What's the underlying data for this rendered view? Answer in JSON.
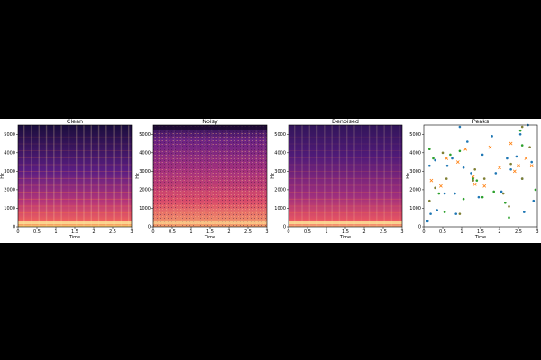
{
  "chart_data": [
    {
      "type": "heatmap",
      "title": "Clean",
      "xlabel": "Time",
      "ylabel": "Hz",
      "xlim": [
        0,
        3
      ],
      "ylim": [
        0,
        5500
      ],
      "xticks": [
        "0",
        "0.5",
        "1",
        "1.5",
        "2",
        "2.5",
        "3"
      ],
      "yticks": [
        "0",
        "1000",
        "2000",
        "3000",
        "4000",
        "5000"
      ],
      "colormap": "magma",
      "content": "harmonic"
    },
    {
      "type": "heatmap",
      "title": "Noisy",
      "xlabel": "Time",
      "ylabel": "Hz",
      "xlim": [
        0,
        3
      ],
      "ylim": [
        0,
        5500
      ],
      "xticks": [
        "0",
        "0.5",
        "1",
        "1.5",
        "2",
        "2.5",
        "3"
      ],
      "yticks": [
        "0",
        "1000",
        "2000",
        "3000",
        "4000",
        "5000"
      ],
      "colormap": "magma",
      "content": "noisy"
    },
    {
      "type": "heatmap",
      "title": "Denoised",
      "xlabel": "Time",
      "ylabel": "Hz",
      "xlim": [
        0,
        3
      ],
      "ylim": [
        0,
        5500
      ],
      "xticks": [
        "0",
        "0.5",
        "1",
        "1.5",
        "2",
        "2.5",
        "3"
      ],
      "yticks": [
        "0",
        "1000",
        "2000",
        "3000",
        "4000",
        "5000"
      ],
      "colormap": "magma",
      "content": "denoised"
    },
    {
      "type": "scatter",
      "title": "Peaks",
      "xlabel": "Time",
      "ylabel": "Hz",
      "xlim": [
        0,
        3
      ],
      "ylim": [
        0,
        5500
      ],
      "xticks": [
        "0",
        "0.5",
        "1",
        "1.5",
        "2",
        "2.5",
        "3"
      ],
      "yticks": [
        "0",
        "1000",
        "2000",
        "3000",
        "4000",
        "5000"
      ],
      "series": [
        {
          "marker": "dot",
          "color": "#1f77b4",
          "points": [
            [
              0.15,
              3300
            ],
            [
              0.18,
              700
            ],
            [
              0.3,
              3600
            ],
            [
              0.35,
              900
            ],
            [
              0.55,
              1800
            ],
            [
              0.62,
              3300
            ],
            [
              0.75,
              3700
            ],
            [
              0.82,
              1800
            ],
            [
              0.85,
              700
            ],
            [
              0.95,
              5400
            ],
            [
              1.05,
              3200
            ],
            [
              1.15,
              4600
            ],
            [
              1.25,
              2900
            ],
            [
              1.45,
              1600
            ],
            [
              1.55,
              3900
            ],
            [
              1.8,
              4900
            ],
            [
              1.9,
              2900
            ],
            [
              2.05,
              1900
            ],
            [
              2.2,
              3700
            ],
            [
              2.3,
              3100
            ],
            [
              2.45,
              3800
            ],
            [
              2.55,
              5000
            ],
            [
              2.6,
              2600
            ],
            [
              2.65,
              800
            ],
            [
              2.75,
              5500
            ],
            [
              2.85,
              3500
            ],
            [
              2.9,
              1400
            ],
            [
              0.1,
              300
            ]
          ]
        },
        {
          "marker": "x",
          "color": "#ff7f0e",
          "points": [
            [
              0.2,
              2500
            ],
            [
              0.45,
              2200
            ],
            [
              0.6,
              3700
            ],
            [
              0.9,
              3500
            ],
            [
              1.1,
              4200
            ],
            [
              1.3,
              2700
            ],
            [
              1.35,
              2300
            ],
            [
              1.6,
              2200
            ],
            [
              1.75,
              4300
            ],
            [
              2.0,
              3200
            ],
            [
              2.3,
              4500
            ],
            [
              2.4,
              3000
            ],
            [
              2.5,
              3300
            ],
            [
              2.7,
              3700
            ],
            [
              2.85,
              3300
            ]
          ]
        },
        {
          "marker": "dot",
          "color": "#2ca02c",
          "points": [
            [
              0.15,
              4200
            ],
            [
              0.25,
              3700
            ],
            [
              0.4,
              1800
            ],
            [
              0.55,
              800
            ],
            [
              0.7,
              3900
            ],
            [
              0.95,
              4100
            ],
            [
              1.05,
              1500
            ],
            [
              1.3,
              2600
            ],
            [
              1.4,
              2500
            ],
            [
              1.55,
              1600
            ],
            [
              1.85,
              1900
            ],
            [
              2.15,
              1300
            ],
            [
              2.25,
              500
            ],
            [
              2.55,
              5200
            ],
            [
              2.6,
              4400
            ],
            [
              2.95,
              2000
            ]
          ]
        },
        {
          "marker": "dot",
          "color": "#7f7f33",
          "points": [
            [
              0.15,
              1400
            ],
            [
              0.3,
              2100
            ],
            [
              0.5,
              4000
            ],
            [
              0.6,
              2600
            ],
            [
              0.95,
              700
            ],
            [
              1.3,
              2500
            ],
            [
              1.35,
              3100
            ],
            [
              1.6,
              2600
            ],
            [
              2.1,
              1800
            ],
            [
              2.25,
              1100
            ],
            [
              2.3,
              3400
            ],
            [
              2.6,
              2600
            ],
            [
              2.6,
              5400
            ],
            [
              2.8,
              4300
            ]
          ]
        }
      ]
    }
  ]
}
